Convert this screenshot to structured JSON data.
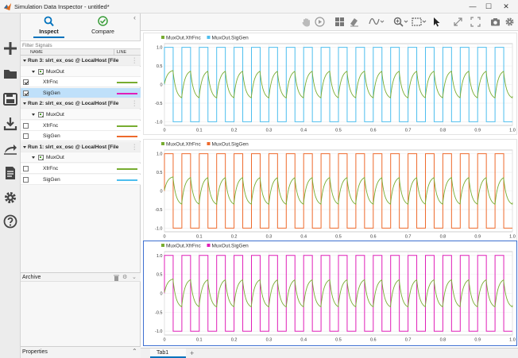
{
  "window": {
    "title": "Simulation Data Inspector - untitled*",
    "controls": {
      "minimize": "—",
      "maximize": "☐",
      "close": "✕"
    }
  },
  "sidebar_icons": [
    "new-plus-icon",
    "open-folder-icon",
    "save-icon",
    "import-icon",
    "export-icon",
    "report-icon",
    "settings-gear-icon",
    "help-icon"
  ],
  "panel": {
    "tabs": [
      {
        "label": "Inspect",
        "icon": "search-icon",
        "active": true
      },
      {
        "label": "Compare",
        "icon": "check-circle-icon",
        "active": false
      }
    ],
    "filter_placeholder": "Filter Signals",
    "columns": {
      "name": "NAME",
      "line": "LINE"
    },
    "runs": [
      {
        "label": "Run 3: slrt_ex_osc @ LocalHost [File",
        "group": "MuxOut",
        "signals": [
          {
            "name": "XfrFnc",
            "checked": true,
            "color": "#77ac30",
            "selected": false
          },
          {
            "name": "SigGen",
            "checked": true,
            "color": "#e01fb8",
            "selected": true
          }
        ]
      },
      {
        "label": "Run 2: slrt_ex_osc @ LocalHost [File",
        "group": "MuxOut",
        "signals": [
          {
            "name": "XfrFnc",
            "checked": false,
            "color": "#77ac30",
            "selected": false
          },
          {
            "name": "SigGen",
            "checked": false,
            "color": "#ee6a2c",
            "selected": false
          }
        ]
      },
      {
        "label": "Run 1: slrt_ex_osc @ LocalHost [File",
        "group": "MuxOut",
        "signals": [
          {
            "name": "XfrFnc",
            "checked": false,
            "color": "#77ac30",
            "selected": false
          },
          {
            "name": "SigGen",
            "checked": false,
            "color": "#4dbeee",
            "selected": false
          }
        ]
      }
    ],
    "archive_label": "Archive",
    "properties_label": "Properties"
  },
  "toolbar_icons": [
    "pan-hand-icon",
    "play-icon",
    "layout-grid-icon",
    "eraser-icon",
    "signal-style-icon",
    "zoom-icon",
    "fit-to-view-icon",
    "cursor-icon",
    "expand-icon",
    "fullscreen-icon",
    "snapshot-camera-icon",
    "settings-gear-icon"
  ],
  "bottom_tabs": {
    "tab1": "Tab1",
    "add": "+"
  },
  "chart_data": [
    {
      "type": "line",
      "legend": [
        {
          "name": "MuxOut.XfrFnc",
          "color": "#77ac30"
        },
        {
          "name": "MuxOut.SigGen",
          "color": "#4dbeee"
        }
      ],
      "xticks": [
        "0",
        "0.1",
        "0.2",
        "0.3",
        "0.4",
        "0.5",
        "0.6",
        "0.7",
        "0.8",
        "0.9",
        "1.0"
      ],
      "yticks": [
        "1.0",
        "0.5",
        "0",
        "-0.5",
        "-1.0"
      ],
      "xlim": [
        0,
        1
      ],
      "ylim": [
        -1.1,
        1.1
      ],
      "square_wave": {
        "period": 0.05,
        "amplitude": 1
      },
      "grid": true,
      "legend_position": "top-left"
    },
    {
      "type": "line",
      "legend": [
        {
          "name": "MuxOut.XfrFnc",
          "color": "#77ac30"
        },
        {
          "name": "MuxOut.SigGen",
          "color": "#ee6a2c"
        }
      ],
      "xticks": [
        "0",
        "0.1",
        "0.2",
        "0.3",
        "0.4",
        "0.5",
        "0.6",
        "0.7",
        "0.8",
        "0.9",
        "1.0"
      ],
      "yticks": [
        "1.0",
        "0.5",
        "0",
        "-0.5",
        "-1.0"
      ],
      "xlim": [
        0,
        1
      ],
      "ylim": [
        -1.1,
        1.1
      ],
      "square_wave": {
        "period": 0.05,
        "amplitude": 1
      },
      "grid": true,
      "legend_position": "top-left"
    },
    {
      "type": "line",
      "legend": [
        {
          "name": "MuxOut.XfrFnc",
          "color": "#77ac30"
        },
        {
          "name": "MuxOut.SigGen",
          "color": "#e01fb8"
        }
      ],
      "xticks": [
        "0",
        "0.1",
        "0.2",
        "0.3",
        "0.4",
        "0.5",
        "0.6",
        "0.7",
        "0.8",
        "0.9",
        "1.0"
      ],
      "yticks": [
        "1.0",
        "0.5",
        "0",
        "-0.5",
        "-1.0"
      ],
      "xlim": [
        0,
        1
      ],
      "ylim": [
        -1.1,
        1.1
      ],
      "square_wave": {
        "period": 0.05,
        "amplitude": 1
      },
      "grid": true,
      "legend_position": "top-left"
    }
  ]
}
